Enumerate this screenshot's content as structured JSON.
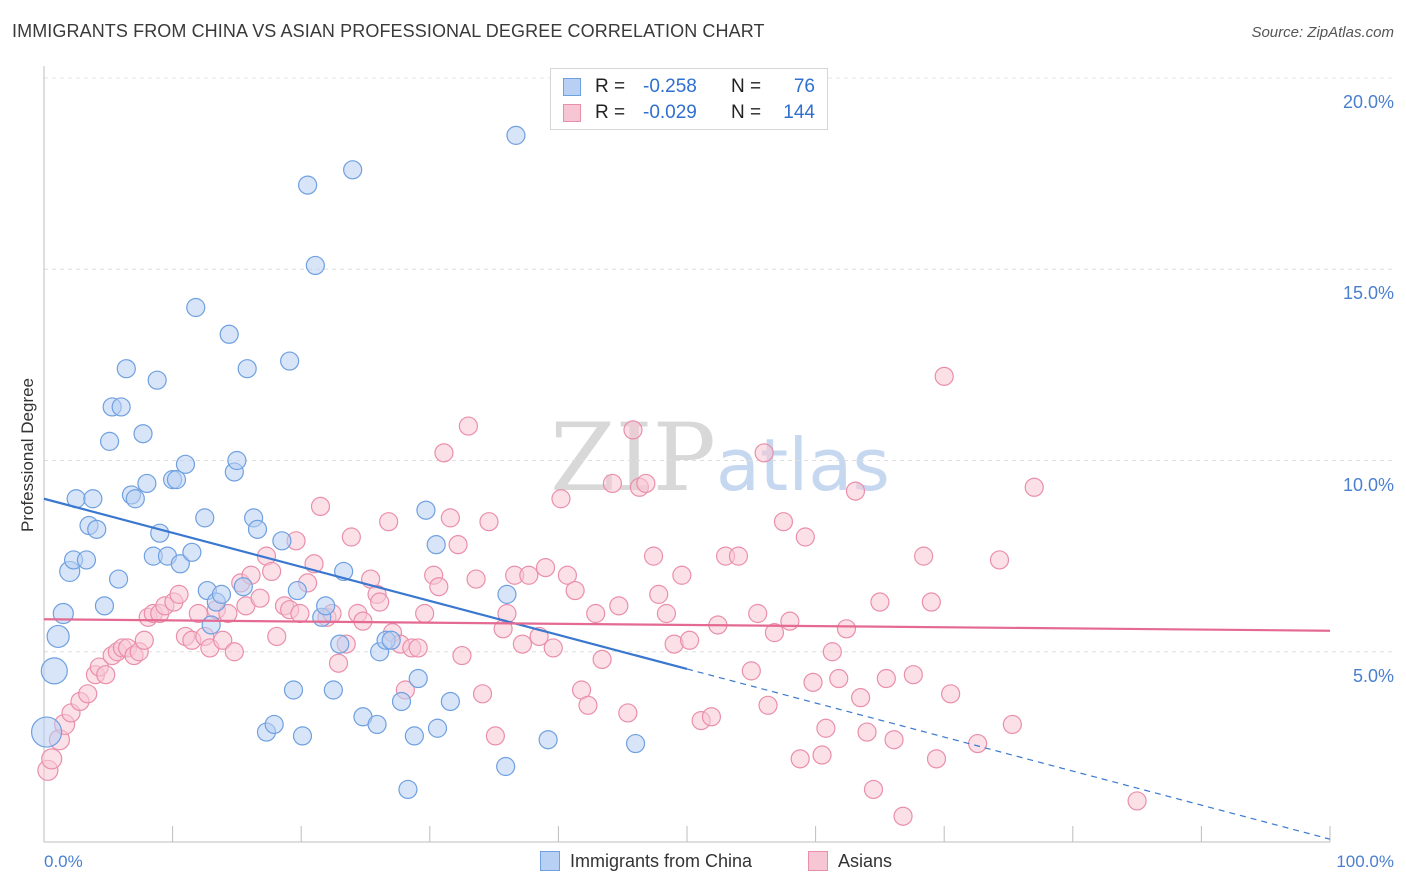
{
  "chart_data": {
    "type": "scatter",
    "title": "IMMIGRANTS FROM CHINA VS ASIAN PROFESSIONAL DEGREE CORRELATION CHART",
    "source": "Source: ZipAtlas.com",
    "xlabel": "",
    "ylabel": "Professional Degree",
    "xlim": [
      0,
      100
    ],
    "ylim": [
      0,
      20.5
    ],
    "x_tick_labels": [
      "0.0%",
      "100.0%"
    ],
    "y_ticks": [
      {
        "value": 5,
        "label": "5.0%"
      },
      {
        "value": 10,
        "label": "10.0%"
      },
      {
        "value": 15,
        "label": "15.0%"
      },
      {
        "value": 20,
        "label": "20.0%"
      }
    ],
    "grid": "horizontal dashed",
    "watermark": "ZIPatlas",
    "stats": [
      {
        "r_label": "R =",
        "r_value": "-0.258",
        "n_label": "N =",
        "n_value": "76"
      },
      {
        "r_label": "R =",
        "r_value": "-0.029",
        "n_label": "N =",
        "n_value": "144"
      }
    ],
    "series": [
      {
        "name": "Immigrants from China",
        "color": "#6fa0e0",
        "fill": "#b8d0f3",
        "line_color": "#3a78d0",
        "trend": {
          "x0": 0,
          "y0": 9.0,
          "x1": 50,
          "y1": 4.55,
          "dashed_to_x": 100,
          "dashed_to_y": 0.1
        },
        "points": [
          [
            0.2,
            2.9,
            14
          ],
          [
            0.8,
            4.5,
            12
          ],
          [
            1.1,
            5.4,
            10
          ],
          [
            1.5,
            6.0,
            9
          ],
          [
            2.0,
            7.1,
            9
          ],
          [
            2.3,
            7.4,
            8
          ],
          [
            2.5,
            9.0,
            8
          ],
          [
            3.3,
            7.4,
            8
          ],
          [
            3.5,
            8.3,
            8
          ],
          [
            3.8,
            9.0,
            8
          ],
          [
            4.1,
            8.2,
            8
          ],
          [
            4.7,
            6.2,
            8
          ],
          [
            5.1,
            10.5,
            8
          ],
          [
            5.3,
            11.4,
            8
          ],
          [
            5.8,
            6.9,
            8
          ],
          [
            6.0,
            11.4,
            8
          ],
          [
            6.4,
            12.4,
            8
          ],
          [
            6.8,
            9.1,
            8
          ],
          [
            7.1,
            9.0,
            8
          ],
          [
            7.7,
            10.7,
            8
          ],
          [
            8.0,
            9.4,
            8
          ],
          [
            8.5,
            7.5,
            8
          ],
          [
            8.8,
            12.1,
            8
          ],
          [
            9.0,
            8.1,
            8
          ],
          [
            9.6,
            7.5,
            8
          ],
          [
            10.0,
            9.5,
            8
          ],
          [
            10.3,
            9.5,
            8
          ],
          [
            10.6,
            7.3,
            8
          ],
          [
            11.0,
            9.9,
            8
          ],
          [
            11.5,
            7.6,
            8
          ],
          [
            11.8,
            14.0,
            8
          ],
          [
            12.5,
            8.5,
            8
          ],
          [
            12.7,
            6.6,
            8
          ],
          [
            13.0,
            5.7,
            8
          ],
          [
            13.4,
            6.3,
            8
          ],
          [
            13.8,
            6.5,
            8
          ],
          [
            14.4,
            13.3,
            8
          ],
          [
            14.8,
            9.7,
            8
          ],
          [
            15.0,
            10.0,
            8
          ],
          [
            15.5,
            6.7,
            8
          ],
          [
            15.8,
            12.4,
            8
          ],
          [
            16.3,
            8.5,
            8
          ],
          [
            16.6,
            8.2,
            8
          ],
          [
            17.3,
            2.9,
            8
          ],
          [
            17.9,
            3.1,
            8
          ],
          [
            18.5,
            7.9,
            8
          ],
          [
            19.1,
            12.6,
            8
          ],
          [
            19.4,
            4.0,
            8
          ],
          [
            19.7,
            6.6,
            8
          ],
          [
            20.1,
            2.8,
            8
          ],
          [
            20.5,
            17.2,
            8
          ],
          [
            21.1,
            15.1,
            8
          ],
          [
            21.6,
            5.9,
            8
          ],
          [
            21.9,
            6.2,
            8
          ],
          [
            22.5,
            4.0,
            8
          ],
          [
            23.0,
            5.2,
            8
          ],
          [
            23.3,
            7.1,
            8
          ],
          [
            24.0,
            17.6,
            8
          ],
          [
            24.8,
            3.3,
            8
          ],
          [
            25.9,
            3.1,
            8
          ],
          [
            26.1,
            5.0,
            8
          ],
          [
            26.6,
            5.3,
            8
          ],
          [
            27.0,
            5.3,
            8
          ],
          [
            27.8,
            3.7,
            8
          ],
          [
            28.3,
            1.4,
            8
          ],
          [
            28.8,
            2.8,
            8
          ],
          [
            29.1,
            4.3,
            8
          ],
          [
            29.7,
            8.7,
            8
          ],
          [
            30.5,
            7.8,
            8
          ],
          [
            30.6,
            3.0,
            8
          ],
          [
            31.6,
            3.7,
            8
          ],
          [
            35.9,
            2.0,
            8
          ],
          [
            36.0,
            6.5,
            8
          ],
          [
            36.7,
            18.5,
            8
          ],
          [
            39.2,
            2.7,
            8
          ],
          [
            46.0,
            2.6,
            8
          ]
        ]
      },
      {
        "name": "Asians",
        "color": "#ea8fab",
        "fill": "#f7c6d5",
        "line_color": "#e46a92",
        "trend": {
          "x0": 0,
          "y0": 5.85,
          "x1": 100,
          "y1": 5.55
        },
        "points": [
          [
            0.3,
            1.9,
            9
          ],
          [
            0.6,
            2.2,
            9
          ],
          [
            1.2,
            2.7,
            9
          ],
          [
            1.6,
            3.1,
            9
          ],
          [
            2.1,
            3.4,
            8
          ],
          [
            2.8,
            3.7,
            8
          ],
          [
            3.4,
            3.9,
            8
          ],
          [
            4.0,
            4.4,
            8
          ],
          [
            4.3,
            4.6,
            8
          ],
          [
            4.8,
            4.4,
            8
          ],
          [
            5.3,
            4.9,
            8
          ],
          [
            5.7,
            5.0,
            8
          ],
          [
            6.1,
            5.1,
            8
          ],
          [
            6.5,
            5.1,
            8
          ],
          [
            7.0,
            4.9,
            8
          ],
          [
            7.4,
            5.0,
            8
          ],
          [
            7.8,
            5.3,
            8
          ],
          [
            8.1,
            5.9,
            8
          ],
          [
            8.5,
            6.0,
            8
          ],
          [
            9.0,
            6.0,
            8
          ],
          [
            9.4,
            6.2,
            8
          ],
          [
            10.1,
            6.3,
            8
          ],
          [
            10.5,
            6.5,
            8
          ],
          [
            11.0,
            5.4,
            8
          ],
          [
            11.5,
            5.3,
            8
          ],
          [
            12.0,
            6.0,
            8
          ],
          [
            12.5,
            5.4,
            8
          ],
          [
            12.9,
            5.1,
            8
          ],
          [
            13.4,
            6.1,
            8
          ],
          [
            13.9,
            5.3,
            8
          ],
          [
            14.3,
            6.0,
            8
          ],
          [
            14.8,
            5.0,
            8
          ],
          [
            15.3,
            6.8,
            8
          ],
          [
            15.7,
            6.2,
            8
          ],
          [
            16.1,
            7.0,
            8
          ],
          [
            16.8,
            6.4,
            8
          ],
          [
            17.3,
            7.5,
            8
          ],
          [
            17.7,
            7.1,
            8
          ],
          [
            18.1,
            5.4,
            8
          ],
          [
            18.7,
            6.2,
            8
          ],
          [
            19.1,
            6.1,
            8
          ],
          [
            19.6,
            7.9,
            8
          ],
          [
            19.9,
            6.0,
            8
          ],
          [
            20.5,
            6.8,
            8
          ],
          [
            21.0,
            7.3,
            8
          ],
          [
            21.5,
            8.8,
            8
          ],
          [
            22.0,
            5.9,
            8
          ],
          [
            22.4,
            6.0,
            8
          ],
          [
            22.9,
            4.7,
            8
          ],
          [
            23.5,
            5.2,
            8
          ],
          [
            23.9,
            8.0,
            8
          ],
          [
            24.4,
            6.0,
            8
          ],
          [
            24.8,
            5.8,
            8
          ],
          [
            25.4,
            6.9,
            8
          ],
          [
            25.9,
            6.5,
            8
          ],
          [
            26.1,
            6.3,
            8
          ],
          [
            26.8,
            8.4,
            8
          ],
          [
            27.1,
            5.5,
            8
          ],
          [
            27.7,
            5.2,
            8
          ],
          [
            28.1,
            4.0,
            8
          ],
          [
            28.6,
            5.1,
            8
          ],
          [
            29.1,
            5.1,
            8
          ],
          [
            29.6,
            6.0,
            8
          ],
          [
            30.3,
            7.0,
            8
          ],
          [
            30.7,
            6.7,
            8
          ],
          [
            31.1,
            10.2,
            8
          ],
          [
            31.6,
            8.5,
            8
          ],
          [
            32.2,
            7.8,
            8
          ],
          [
            32.5,
            4.9,
            8
          ],
          [
            33.0,
            10.9,
            8
          ],
          [
            33.6,
            6.9,
            8
          ],
          [
            34.1,
            3.9,
            8
          ],
          [
            34.6,
            8.4,
            8
          ],
          [
            35.1,
            2.8,
            8
          ],
          [
            35.7,
            5.6,
            8
          ],
          [
            36.0,
            6.0,
            8
          ],
          [
            36.6,
            7.0,
            8
          ],
          [
            37.2,
            5.2,
            8
          ],
          [
            37.7,
            7.0,
            8
          ],
          [
            38.5,
            5.4,
            8
          ],
          [
            39.0,
            7.2,
            8
          ],
          [
            39.6,
            5.1,
            8
          ],
          [
            40.2,
            9.0,
            8
          ],
          [
            40.7,
            7.0,
            8
          ],
          [
            41.3,
            6.6,
            8
          ],
          [
            41.8,
            4.0,
            8
          ],
          [
            42.3,
            3.6,
            8
          ],
          [
            42.9,
            6.0,
            8
          ],
          [
            43.4,
            4.8,
            8
          ],
          [
            44.2,
            9.4,
            8
          ],
          [
            44.7,
            6.2,
            8
          ],
          [
            45.4,
            3.4,
            8
          ],
          [
            45.8,
            10.8,
            8
          ],
          [
            46.3,
            9.3,
            8
          ],
          [
            46.8,
            9.4,
            8
          ],
          [
            47.4,
            7.5,
            8
          ],
          [
            47.8,
            6.5,
            8
          ],
          [
            48.4,
            6.0,
            8
          ],
          [
            49.0,
            5.2,
            8
          ],
          [
            49.6,
            7.0,
            8
          ],
          [
            50.2,
            5.3,
            8
          ],
          [
            51.1,
            3.2,
            8
          ],
          [
            51.9,
            3.3,
            8
          ],
          [
            52.4,
            5.7,
            8
          ],
          [
            53.0,
            7.5,
            8
          ],
          [
            54.0,
            7.5,
            8
          ],
          [
            55.0,
            4.5,
            8
          ],
          [
            55.5,
            6.0,
            8
          ],
          [
            56.0,
            10.2,
            8
          ],
          [
            56.3,
            3.6,
            8
          ],
          [
            56.8,
            5.5,
            8
          ],
          [
            57.5,
            8.4,
            8
          ],
          [
            58.0,
            5.8,
            8
          ],
          [
            58.8,
            2.2,
            8
          ],
          [
            59.2,
            8.0,
            8
          ],
          [
            59.8,
            4.2,
            8
          ],
          [
            60.5,
            2.3,
            8
          ],
          [
            60.8,
            3.0,
            8
          ],
          [
            61.3,
            5.0,
            8
          ],
          [
            61.8,
            4.3,
            8
          ],
          [
            62.4,
            5.6,
            8
          ],
          [
            63.1,
            9.2,
            8
          ],
          [
            63.5,
            3.8,
            8
          ],
          [
            64.0,
            2.9,
            8
          ],
          [
            64.5,
            1.4,
            8
          ],
          [
            65.0,
            6.3,
            8
          ],
          [
            65.5,
            4.3,
            8
          ],
          [
            66.1,
            2.7,
            8
          ],
          [
            66.8,
            0.7,
            8
          ],
          [
            67.6,
            4.4,
            8
          ],
          [
            68.4,
            7.5,
            8
          ],
          [
            69.0,
            6.3,
            8
          ],
          [
            69.4,
            2.2,
            8
          ],
          [
            70.0,
            12.2,
            8
          ],
          [
            70.5,
            3.9,
            8
          ],
          [
            72.6,
            2.6,
            8
          ],
          [
            74.3,
            7.4,
            8
          ],
          [
            75.3,
            3.1,
            8
          ],
          [
            77.0,
            9.3,
            8
          ],
          [
            85.0,
            1.1,
            8
          ]
        ]
      }
    ],
    "legend": [
      "Immigrants from China",
      "Asians"
    ]
  }
}
